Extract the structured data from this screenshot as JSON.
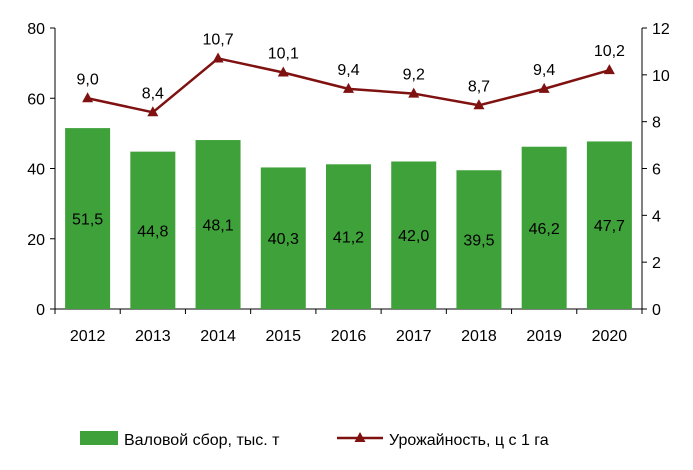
{
  "chart_data": {
    "type": "bar+line",
    "categories": [
      "2012",
      "2013",
      "2014",
      "2015",
      "2016",
      "2017",
      "2018",
      "2019",
      "2020"
    ],
    "series": [
      {
        "name": "Валовой сбор, тыс. т",
        "type": "bar",
        "axis": "left",
        "color": "#3fa13a",
        "values": [
          51.5,
          44.8,
          48.1,
          40.3,
          41.2,
          42.0,
          39.5,
          46.2,
          47.7
        ],
        "labels": [
          "51,5",
          "44,8",
          "48,1",
          "40,3",
          "41,2",
          "42,0",
          "39,5",
          "46,2",
          "47,7"
        ]
      },
      {
        "name": "Урожайность, ц с 1 га",
        "type": "line",
        "axis": "right",
        "color": "#7f1111",
        "marker": "triangle",
        "values": [
          9.0,
          8.4,
          10.7,
          10.1,
          9.4,
          9.2,
          8.7,
          9.4,
          10.2
        ],
        "labels": [
          "9,0",
          "8,4",
          "10,7",
          "10,1",
          "9,4",
          "9,2",
          "8,7",
          "9,4",
          "10,2"
        ]
      }
    ],
    "y_left": {
      "min": 0,
      "max": 80,
      "ticks": [
        "0",
        "20",
        "40",
        "60",
        "80"
      ]
    },
    "y_right": {
      "min": 0,
      "max": 12,
      "ticks": [
        "0",
        "2",
        "4",
        "6",
        "8",
        "10",
        "12"
      ]
    },
    "title": "",
    "legend_position": "bottom"
  }
}
